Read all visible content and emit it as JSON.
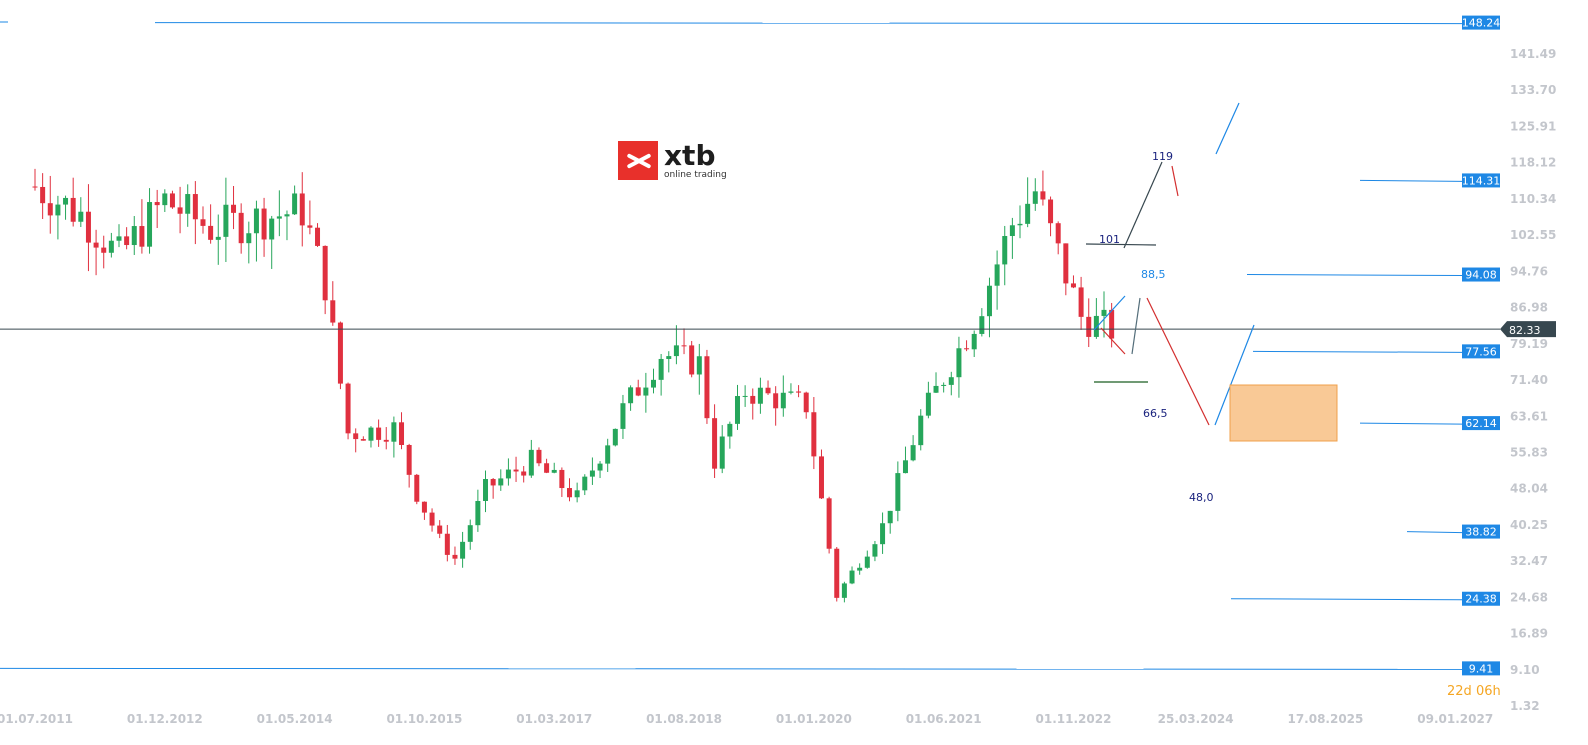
{
  "logo": {
    "word": "xtb",
    "tagline": "online trading"
  },
  "countdown": {
    "days": "22",
    "d_unit": "d",
    "hours": "06",
    "h_unit": "h"
  },
  "colors": {
    "up": "#26a65b",
    "down": "#e0303f",
    "level": "#1e88e5",
    "price_line": "#37474f",
    "zone": "#f9c996",
    "zone_border": "#f0a04b"
  },
  "chart_data": {
    "type": "candlestick",
    "y_ticks": [
      "141.49",
      "133.70",
      "125.91",
      "118.12",
      "110.34",
      "102.55",
      "94.76",
      "86.98",
      "79.19",
      "71.40",
      "63.61",
      "55.83",
      "48.04",
      "40.25",
      "32.47",
      "24.68",
      "16.89",
      "9.10",
      "1.32"
    ],
    "x_ticks": [
      "01.07.2011",
      "01.12.2012",
      "01.05.2014",
      "01.10.2015",
      "01.03.2017",
      "01.08.2018",
      "01.01.2020",
      "01.06.2021",
      "01.11.2022",
      "25.03.2024",
      "17.08.2025",
      "09.01.2027"
    ],
    "current_price": "82.33",
    "levels": [
      "148.24",
      "114.31",
      "94.08",
      "77.56",
      "62.14",
      "38.82",
      "24.38",
      "9.41"
    ],
    "annotations": [
      "119",
      "101",
      "88,5",
      "66,5",
      "48,0"
    ],
    "close_series": [
      {
        "date": "2011-07",
        "close": 113
      },
      {
        "date": "2012-01",
        "close": 107
      },
      {
        "date": "2012-06",
        "close": 98
      },
      {
        "date": "2012-12",
        "close": 110
      },
      {
        "date": "2013-06",
        "close": 104
      },
      {
        "date": "2013-12",
        "close": 106
      },
      {
        "date": "2014-06",
        "close": 108
      },
      {
        "date": "2014-09",
        "close": 92
      },
      {
        "date": "2014-12",
        "close": 60
      },
      {
        "date": "2015-06",
        "close": 61
      },
      {
        "date": "2015-09",
        "close": 47
      },
      {
        "date": "2015-12",
        "close": 37
      },
      {
        "date": "2016-02",
        "close": 33
      },
      {
        "date": "2016-06",
        "close": 48
      },
      {
        "date": "2016-12",
        "close": 54
      },
      {
        "date": "2017-06",
        "close": 46
      },
      {
        "date": "2017-12",
        "close": 65
      },
      {
        "date": "2018-05",
        "close": 77
      },
      {
        "date": "2018-10",
        "close": 75
      },
      {
        "date": "2018-12",
        "close": 54
      },
      {
        "date": "2019-04",
        "close": 69
      },
      {
        "date": "2019-12",
        "close": 66
      },
      {
        "date": "2020-04",
        "close": 25
      },
      {
        "date": "2020-10",
        "close": 40
      },
      {
        "date": "2021-03",
        "close": 63
      },
      {
        "date": "2021-10",
        "close": 84
      },
      {
        "date": "2022-03",
        "close": 105
      },
      {
        "date": "2022-06",
        "close": 112
      },
      {
        "date": "2022-12",
        "close": 85
      },
      {
        "date": "2023-04",
        "close": 82.33
      }
    ]
  }
}
